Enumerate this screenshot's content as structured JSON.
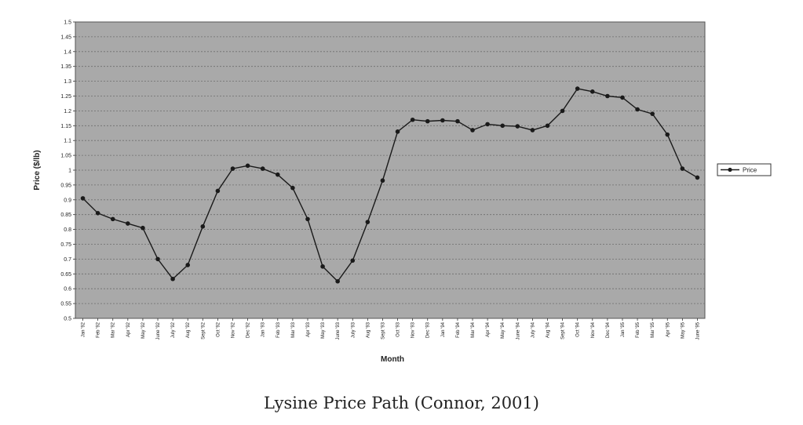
{
  "caption": "Lysine Price Path (Connor, 2001)",
  "chart_data": {
    "type": "line",
    "title": "",
    "xlabel": "Month",
    "ylabel": "Price ($/lb)",
    "ylim": [
      0.5,
      1.5
    ],
    "y_ticks": [
      "0.5",
      "0.55",
      "0.6",
      "0.65",
      "0.7",
      "0.75",
      "0.8",
      "0.85",
      "0.9",
      "0.95",
      "1",
      "1.05",
      "1.1",
      "1.15",
      "1.2",
      "1.25",
      "1.3",
      "1.35",
      "1.4",
      "1.45",
      "1.5"
    ],
    "grid": true,
    "legend_position": "right",
    "categories": [
      "Jan '92",
      "Feb '92",
      "Mar '92",
      "Apr '92",
      "May '92",
      "June '92",
      "July '92",
      "Aug '92",
      "Sept '92",
      "Oct '92",
      "Nov '92",
      "Dec '92",
      "Jan '93",
      "Feb '93",
      "Mar '93",
      "Apr '93",
      "May '93",
      "June '93",
      "July '93",
      "Aug '93",
      "Sept '93",
      "Oct '93",
      "Nov '93",
      "Dec '93",
      "Jan '94",
      "Feb '94",
      "Mar '94",
      "Apr '94",
      "May '94",
      "June '94",
      "July '94",
      "Aug '94",
      "Sept '94",
      "Oct '94",
      "Nov '94",
      "Dec '94",
      "Jan '95",
      "Feb '95",
      "Mar '95",
      "Apr '95",
      "May '95",
      "June '95"
    ],
    "series": [
      {
        "name": "Price",
        "values": [
          0.905,
          0.855,
          0.835,
          0.82,
          0.805,
          0.7,
          0.633,
          0.68,
          0.81,
          0.93,
          1.005,
          1.015,
          1.005,
          0.985,
          0.94,
          0.835,
          0.675,
          0.625,
          0.695,
          0.825,
          0.965,
          1.13,
          1.17,
          1.165,
          1.168,
          1.165,
          1.135,
          1.155,
          1.15,
          1.148,
          1.135,
          1.15,
          1.2,
          1.275,
          1.265,
          1.25,
          1.245,
          1.205,
          1.19,
          1.12,
          1.005,
          0.975
        ]
      }
    ]
  },
  "colors": {
    "plot_bg": "#a9a9a9",
    "grid": "#6e6e6e",
    "line": "#1a1a1a"
  }
}
